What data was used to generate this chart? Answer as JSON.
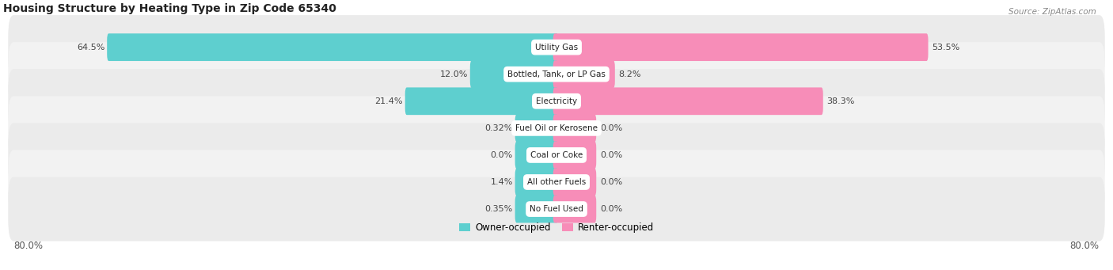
{
  "title": "Housing Structure by Heating Type in Zip Code 65340",
  "source": "Source: ZipAtlas.com",
  "categories": [
    "Utility Gas",
    "Bottled, Tank, or LP Gas",
    "Electricity",
    "Fuel Oil or Kerosene",
    "Coal or Coke",
    "All other Fuels",
    "No Fuel Used"
  ],
  "owner_values": [
    64.5,
    12.0,
    21.4,
    0.32,
    0.0,
    1.4,
    0.35
  ],
  "renter_values": [
    53.5,
    8.2,
    38.3,
    0.0,
    0.0,
    0.0,
    0.0
  ],
  "owner_color": "#5ecfcf",
  "renter_color": "#f78db8",
  "row_bg_even": "#ebebeb",
  "row_bg_odd": "#f5f5f5",
  "x_max": 80.0,
  "x_min": -80.0,
  "min_bar_display": 5.5,
  "axis_label_left": "80.0%",
  "axis_label_right": "80.0%",
  "owner_label": "Owner-occupied",
  "renter_label": "Renter-occupied",
  "title_fontsize": 10,
  "source_fontsize": 7.5,
  "label_fontsize": 8,
  "category_fontsize": 7.5
}
